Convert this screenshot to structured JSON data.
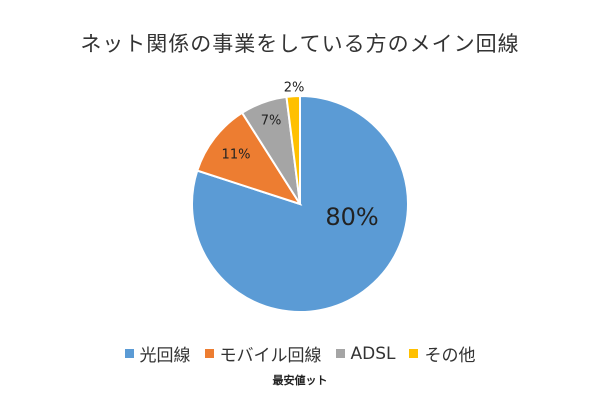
{
  "chart_data": {
    "type": "pie",
    "title": "ネット関係の事業をしている方のメイン回線",
    "categories": [
      "光回線",
      "モバイル回線",
      "ADSL",
      "その他"
    ],
    "values": [
      80,
      11,
      7,
      2
    ],
    "labels": [
      "80%",
      "11%",
      "7%",
      "2%"
    ],
    "colors": [
      "#5b9bd5",
      "#ed7d31",
      "#a5a5a5",
      "#ffc000"
    ],
    "legend_position": "bottom"
  },
  "logo": "最安値ット"
}
